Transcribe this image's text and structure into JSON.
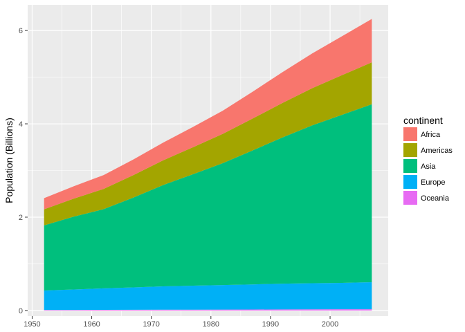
{
  "chart_data": {
    "type": "area",
    "stacked": true,
    "xlabel": "",
    "ylabel": "Population (Billions)",
    "x": [
      1952,
      1957,
      1962,
      1967,
      1972,
      1977,
      1982,
      1987,
      1992,
      1997,
      2002,
      2007
    ],
    "xlim": [
      1949.25,
      2009.75
    ],
    "ylim": [
      -0.12,
      6.55
    ],
    "x_ticks": [
      1950,
      1960,
      1970,
      1980,
      1990,
      2000
    ],
    "y_ticks": [
      0,
      2,
      4,
      6
    ],
    "grid": true,
    "legend": {
      "title": "continent",
      "position": "right"
    },
    "series": [
      {
        "name": "Oceania",
        "color": "#E76BF3",
        "values": [
          0.011,
          0.012,
          0.014,
          0.015,
          0.017,
          0.018,
          0.019,
          0.021,
          0.023,
          0.024,
          0.026,
          0.026
        ]
      },
      {
        "name": "Europe",
        "color": "#00B0F6",
        "values": [
          0.418,
          0.438,
          0.461,
          0.481,
          0.5,
          0.514,
          0.526,
          0.538,
          0.552,
          0.56,
          0.565,
          0.581
        ]
      },
      {
        "name": "Asia",
        "color": "#00BF7D",
        "values": [
          1.395,
          1.562,
          1.697,
          1.925,
          2.172,
          2.389,
          2.613,
          2.871,
          3.133,
          3.383,
          3.602,
          3.812
        ]
      },
      {
        "name": "Americas",
        "color": "#A3A500",
        "values": [
          0.345,
          0.386,
          0.433,
          0.481,
          0.53,
          0.578,
          0.628,
          0.683,
          0.739,
          0.797,
          0.85,
          0.899
        ]
      },
      {
        "name": "Africa",
        "color": "#F8766D",
        "values": [
          0.238,
          0.265,
          0.297,
          0.336,
          0.38,
          0.434,
          0.497,
          0.575,
          0.66,
          0.744,
          0.834,
          0.93
        ]
      }
    ],
    "legend_order": [
      "Africa",
      "Americas",
      "Asia",
      "Europe",
      "Oceania"
    ]
  }
}
